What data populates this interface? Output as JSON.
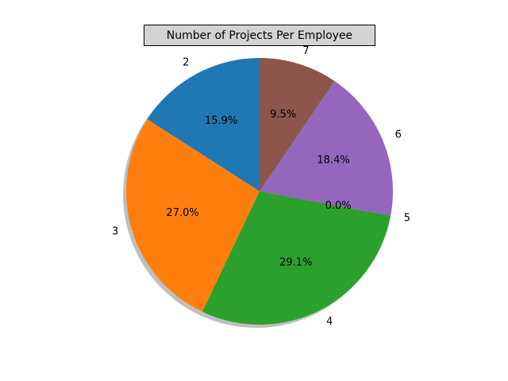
{
  "chart_data": {
    "type": "pie",
    "title": "Number of Projects Per Employee",
    "categories": [
      "2",
      "3",
      "4",
      "5",
      "6",
      "7"
    ],
    "values": [
      15.9,
      27.0,
      29.1,
      0.0,
      18.4,
      9.5
    ],
    "percent_labels": [
      "15.9%",
      "27.0%",
      "29.1%",
      "0.0%",
      "18.4%",
      "9.5%"
    ],
    "colors": [
      "#1f77b4",
      "#ff7f0e",
      "#2ca02c",
      "#d62728",
      "#9467bd",
      "#8c564b"
    ],
    "start_angle": 90,
    "direction": "counterclockwise",
    "shadow": true,
    "legend": "none"
  }
}
